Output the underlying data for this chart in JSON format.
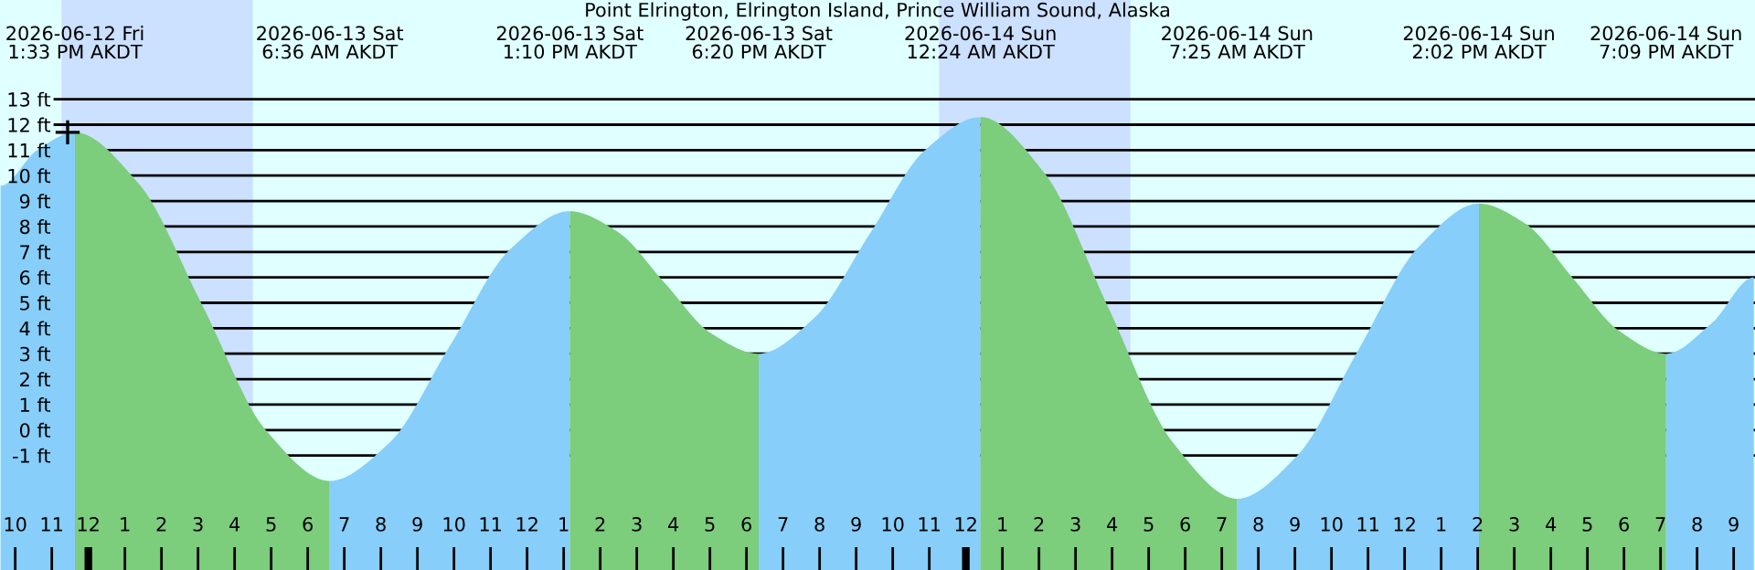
{
  "chart_data": {
    "type": "area",
    "title": "Point Elrington, Elrington Island, Prince William Sound, Alaska",
    "x": [
      "2026-06-12T21:36",
      "2026-06-12T22:36",
      "2026-06-12T23:38",
      "2026-06-13T01:22",
      "2026-06-13T03:07",
      "2026-06-13T04:51",
      "2026-06-13T06:36",
      "2026-06-13T08:14",
      "2026-06-13T09:53",
      "2026-06-13T11:32",
      "2026-06-13T13:10",
      "2026-06-13T14:28",
      "2026-06-13T15:45",
      "2026-06-13T17:02",
      "2026-06-13T18:20",
      "2026-06-13T19:51",
      "2026-06-13T21:22",
      "2026-06-13T22:53",
      "2026-06-14T00:24",
      "2026-06-14T02:09",
      "2026-06-14T03:54",
      "2026-06-14T05:40",
      "2026-06-14T07:25",
      "2026-06-14T09:04",
      "2026-06-14T10:43",
      "2026-06-14T12:23",
      "2026-06-14T14:02",
      "2026-06-14T15:19",
      "2026-06-14T16:35",
      "2026-06-14T17:52",
      "2026-06-14T19:09",
      "2026-06-14T20:24",
      "2026-06-14T21:33"
    ],
    "series": [
      {
        "color": "#87cefa",
        "values": [
          9.6,
          11.0,
          11.7,
          null,
          null,
          null,
          -2.0,
          -0.5,
          3.3,
          7.1,
          8.6,
          null,
          null,
          null,
          3.0,
          4.4,
          7.7,
          11.0,
          12.3,
          null,
          null,
          null,
          -2.7,
          -1.0,
          3.1,
          7.2,
          8.9,
          null,
          null,
          null,
          3.0,
          4.2,
          6.0
        ]
      },
      {
        "color": "#7ccd7c",
        "values": [
          null,
          null,
          11.7,
          9.7,
          4.9,
          0.0,
          -2.0,
          null,
          null,
          null,
          8.6,
          7.8,
          5.8,
          3.8,
          3.0,
          null,
          null,
          null,
          12.3,
          10.1,
          4.8,
          -0.5,
          -2.7,
          null,
          null,
          null,
          8.9,
          8.1,
          6.0,
          3.9,
          3.0,
          null,
          null
        ]
      },
      {
        "type": "scatter",
        "color": "#000000",
        "marker": "cross",
        "x": [
          "2026-06-12T23:26"
        ],
        "values": [
          11.7
        ]
      }
    ],
    "xlim": [
      "2026-06-12T21:35",
      "2026-06-14T21:35"
    ],
    "ylim": [
      -5.5,
      16.9
    ],
    "xticks": [
      {
        "value": "2026-06-12T22:00",
        "label": "10"
      },
      {
        "value": "2026-06-12T23:00",
        "label": "11"
      },
      {
        "value": "2026-06-13T00:00",
        "label": "12"
      },
      {
        "value": "2026-06-13T01:00",
        "label": "1"
      },
      {
        "value": "2026-06-13T02:00",
        "label": "2"
      },
      {
        "value": "2026-06-13T03:00",
        "label": "3"
      },
      {
        "value": "2026-06-13T04:00",
        "label": "4"
      },
      {
        "value": "2026-06-13T05:00",
        "label": "5"
      },
      {
        "value": "2026-06-13T06:00",
        "label": "6"
      },
      {
        "value": "2026-06-13T07:00",
        "label": "7"
      },
      {
        "value": "2026-06-13T08:00",
        "label": "8"
      },
      {
        "value": "2026-06-13T09:00",
        "label": "9"
      },
      {
        "value": "2026-06-13T10:00",
        "label": "10"
      },
      {
        "value": "2026-06-13T11:00",
        "label": "11"
      },
      {
        "value": "2026-06-13T12:00",
        "label": "12"
      },
      {
        "value": "2026-06-13T13:00",
        "label": "1"
      },
      {
        "value": "2026-06-13T14:00",
        "label": "2"
      },
      {
        "value": "2026-06-13T15:00",
        "label": "3"
      },
      {
        "value": "2026-06-13T16:00",
        "label": "4"
      },
      {
        "value": "2026-06-13T17:00",
        "label": "5"
      },
      {
        "value": "2026-06-13T18:00",
        "label": "6"
      },
      {
        "value": "2026-06-13T19:00",
        "label": "7"
      },
      {
        "value": "2026-06-13T20:00",
        "label": "8"
      },
      {
        "value": "2026-06-13T21:00",
        "label": "9"
      },
      {
        "value": "2026-06-13T22:00",
        "label": "10"
      },
      {
        "value": "2026-06-13T23:00",
        "label": "11"
      },
      {
        "value": "2026-06-14T00:00",
        "label": "12"
      },
      {
        "value": "2026-06-14T01:00",
        "label": "1"
      },
      {
        "value": "2026-06-14T02:00",
        "label": "2"
      },
      {
        "value": "2026-06-14T03:00",
        "label": "3"
      },
      {
        "value": "2026-06-14T04:00",
        "label": "4"
      },
      {
        "value": "2026-06-14T05:00",
        "label": "5"
      },
      {
        "value": "2026-06-14T06:00",
        "label": "6"
      },
      {
        "value": "2026-06-14T07:00",
        "label": "7"
      },
      {
        "value": "2026-06-14T08:00",
        "label": "8"
      },
      {
        "value": "2026-06-14T09:00",
        "label": "9"
      },
      {
        "value": "2026-06-14T10:00",
        "label": "10"
      },
      {
        "value": "2026-06-14T11:00",
        "label": "11"
      },
      {
        "value": "2026-06-14T12:00",
        "label": "12"
      },
      {
        "value": "2026-06-14T13:00",
        "label": "1"
      },
      {
        "value": "2026-06-14T14:00",
        "label": "2"
      },
      {
        "value": "2026-06-14T15:00",
        "label": "3"
      },
      {
        "value": "2026-06-14T16:00",
        "label": "4"
      },
      {
        "value": "2026-06-14T17:00",
        "label": "5"
      },
      {
        "value": "2026-06-14T18:00",
        "label": "6"
      },
      {
        "value": "2026-06-14T19:00",
        "label": "7"
      },
      {
        "value": "2026-06-14T20:00",
        "label": "8"
      },
      {
        "value": "2026-06-14T21:00",
        "label": "9"
      }
    ],
    "yticks": [
      {
        "value": -1,
        "label": "-1 ft"
      },
      {
        "value": 0,
        "label": "0 ft"
      },
      {
        "value": 1,
        "label": "1 ft"
      },
      {
        "value": 2,
        "label": "2 ft"
      },
      {
        "value": 3,
        "label": "3 ft"
      },
      {
        "value": 4,
        "label": "4 ft"
      },
      {
        "value": 5,
        "label": "5 ft"
      },
      {
        "value": 6,
        "label": "6 ft"
      },
      {
        "value": 7,
        "label": "7 ft"
      },
      {
        "value": 8,
        "label": "8 ft"
      },
      {
        "value": 9,
        "label": "9 ft"
      },
      {
        "value": 10,
        "label": "10 ft"
      },
      {
        "value": 11,
        "label": "11 ft"
      },
      {
        "value": 12,
        "label": "12 ft"
      },
      {
        "value": 13,
        "label": "13 ft"
      }
    ],
    "grid": "y",
    "bands": [
      {
        "axis": "x",
        "from": "2026-06-12T23:16",
        "to": "2026-06-13T04:30",
        "color": "#cce0ff"
      },
      {
        "axis": "x",
        "from": "2026-06-13T23:16",
        "to": "2026-06-14T04:30",
        "color": "#cce0ff"
      }
    ],
    "annotations": [
      "2026-06-12 Fri\n1:33 PM AKDT",
      "2026-06-13 Sat\n6:36 AM AKDT",
      "2026-06-13 Sat\n1:10 PM AKDT",
      "2026-06-13 Sat\n6:20 PM AKDT",
      "2026-06-14 Sun\n12:24 AM AKDT",
      "2026-06-14 Sun\n7:25 AM AKDT",
      "2026-06-14 Sun\n2:02 PM AKDT",
      "2026-06-14 Sun\n7:09 PM AKDT"
    ]
  }
}
